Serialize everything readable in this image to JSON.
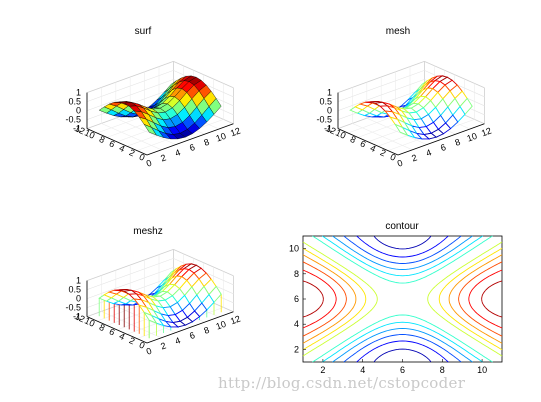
{
  "figure": {
    "watermark": "http://blog.csdn.net/cstopcoder"
  },
  "chart_data": [
    {
      "type": "surface",
      "subtype": "surf",
      "title": "surf",
      "colormap": "jet",
      "function": "saddle: z = cos(pi*(y-1)/5) * -cos(pi*(x-1)/10) pattern, peaks at corners, saddle center",
      "grid_size": [
        11,
        11
      ],
      "x_ticks": [
        "0",
        "2",
        "4",
        "6",
        "8",
        "10",
        "12"
      ],
      "y_ticks": [
        "12",
        "10",
        "8",
        "6",
        "4",
        "2",
        "0"
      ],
      "z_ticks": [
        "1",
        "0.5",
        "0",
        "-0.5",
        "-1"
      ],
      "zlim": [
        -1,
        1
      ]
    },
    {
      "type": "surface",
      "subtype": "mesh",
      "title": "mesh",
      "colormap": "jet",
      "grid_size": [
        11,
        11
      ],
      "x_ticks": [
        "0",
        "2",
        "4",
        "6",
        "8",
        "10",
        "12"
      ],
      "y_ticks": [
        "12",
        "10",
        "8",
        "6",
        "4",
        "2",
        "0"
      ],
      "z_ticks": [
        "1",
        "0.5",
        "0",
        "-0.5",
        "-1"
      ],
      "zlim": [
        -1,
        1
      ]
    },
    {
      "type": "surface",
      "subtype": "meshz",
      "title": "meshz",
      "colormap": "jet",
      "grid_size": [
        11,
        11
      ],
      "x_ticks": [
        "0",
        "2",
        "4",
        "6",
        "8",
        "10",
        "12"
      ],
      "y_ticks": [
        "12",
        "10",
        "8",
        "6",
        "4",
        "2",
        "0"
      ],
      "z_ticks": [
        "1",
        "0.5",
        "0",
        "-0.5",
        "-1"
      ],
      "zlim": [
        -1,
        1
      ]
    },
    {
      "type": "contour",
      "title": "contour",
      "colormap": "jet",
      "xlim": [
        1,
        11
      ],
      "ylim": [
        1,
        11
      ],
      "x_ticks": [
        "2",
        "4",
        "6",
        "8",
        "10"
      ],
      "y_ticks": [
        "2",
        "4",
        "6",
        "8",
        "10"
      ],
      "levels": [
        -0.9,
        -0.75,
        -0.6,
        -0.45,
        -0.3,
        -0.15,
        0.15,
        0.3,
        0.45,
        0.6,
        0.75,
        0.9
      ]
    }
  ]
}
